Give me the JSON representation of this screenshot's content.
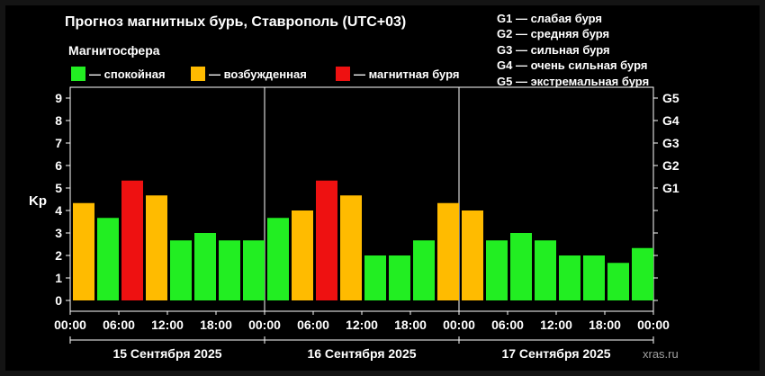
{
  "header": {
    "title": "Прогноз магнитных бурь, Ставрополь (UTC+03)",
    "legend_title": "Магнитосфера"
  },
  "legend": [
    {
      "label": "— спокойная",
      "color": "#22ee22"
    },
    {
      "label": "— возбужденная",
      "color": "#ffbb00"
    },
    {
      "label": "— магнитная буря",
      "color": "#ee1111"
    }
  ],
  "g_scale": [
    "G1 — слабая буря",
    "G2 — средняя буря",
    "G3 — сильная буря",
    "G4 — очень сильная буря",
    "G5 — экстремальная буря"
  ],
  "watermark": "xras.ru",
  "chart_data": {
    "type": "bar",
    "ylabel": "Kp",
    "ylim": [
      0,
      9
    ],
    "yticks": [
      0,
      1,
      2,
      3,
      4,
      5,
      6,
      7,
      8,
      9
    ],
    "right_ticks": [
      {
        "label": "G1",
        "value": 5
      },
      {
        "label": "G2",
        "value": 6
      },
      {
        "label": "G3",
        "value": 7
      },
      {
        "label": "G4",
        "value": 8
      },
      {
        "label": "G5",
        "value": 9
      }
    ],
    "xtick_labels": [
      "00:00",
      "06:00",
      "12:00",
      "18:00",
      "00:00",
      "06:00",
      "12:00",
      "18:00",
      "00:00",
      "06:00",
      "12:00",
      "18:00",
      "00:00"
    ],
    "days": [
      "15 Сентября 2025",
      "16 Сентября 2025",
      "17 Сентября 2025"
    ],
    "interval_hours": 3,
    "values": [
      4.33,
      3.67,
      5.33,
      4.67,
      2.67,
      3.0,
      2.67,
      2.67,
      3.67,
      4.0,
      5.33,
      4.67,
      2.0,
      2.0,
      2.67,
      4.33,
      4.0,
      2.67,
      3.0,
      2.67,
      2.0,
      2.0,
      1.67,
      2.33
    ],
    "colors": {
      "calm": "#22ee22",
      "active": "#ffbb00",
      "storm": "#ee1111"
    }
  }
}
